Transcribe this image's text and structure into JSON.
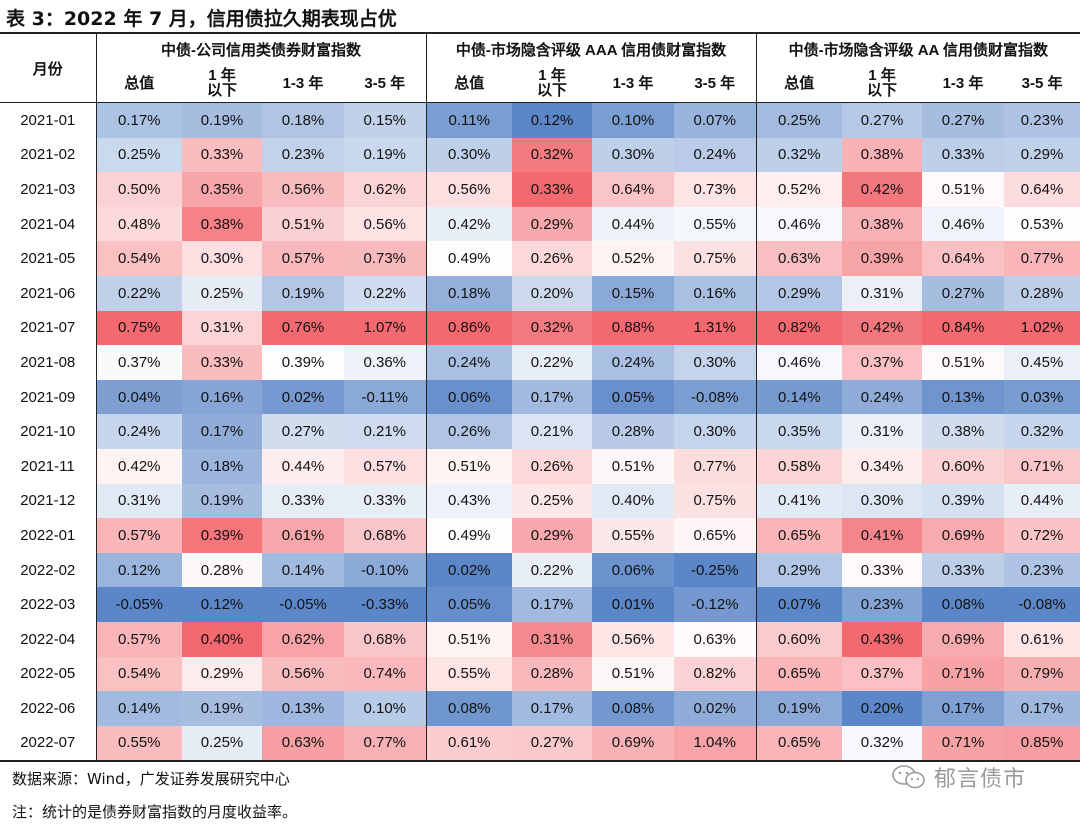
{
  "title": "表 3：2022 年 7 月，信用债拉久期表现占优",
  "source": "数据来源：Wind，广发证券发展研究中心",
  "note": "注：统计的是债券财富指数的月度收益率。",
  "watermark": "郁言债市",
  "colors": {
    "negative_max": "#5b86c7",
    "neutral": "#ffffff",
    "positive_max": "#f26a70",
    "rule": "#222222"
  },
  "chart_data": {
    "type": "heatmap",
    "title": "表 3：2022 年 7 月，信用债拉久期表现占优",
    "row_header": "月份",
    "groups": [
      {
        "name": "中债-公司信用类债券财富指数",
        "columns": [
          "总值",
          "1 年\n以下",
          "1-3 年",
          "3-5 年"
        ]
      },
      {
        "name": "中债-市场隐含评级 AAA 信用债财富指数",
        "columns": [
          "总值",
          "1 年\n以下",
          "1-3 年",
          "3-5 年"
        ]
      },
      {
        "name": "中债-市场隐含评级 AA 信用债财富指数",
        "columns": [
          "总值",
          "1 年\n以下",
          "1-3 年",
          "3-5 年"
        ]
      }
    ],
    "unit": "%",
    "rows": [
      {
        "month": "2021-01",
        "values": [
          0.17,
          0.19,
          0.18,
          0.15,
          0.11,
          0.12,
          0.1,
          0.07,
          0.25,
          0.27,
          0.27,
          0.23
        ]
      },
      {
        "month": "2021-02",
        "values": [
          0.25,
          0.33,
          0.23,
          0.19,
          0.3,
          0.32,
          0.3,
          0.24,
          0.32,
          0.38,
          0.33,
          0.29
        ]
      },
      {
        "month": "2021-03",
        "values": [
          0.5,
          0.35,
          0.56,
          0.62,
          0.56,
          0.33,
          0.64,
          0.73,
          0.52,
          0.42,
          0.51,
          0.64
        ]
      },
      {
        "month": "2021-04",
        "values": [
          0.48,
          0.38,
          0.51,
          0.56,
          0.42,
          0.29,
          0.44,
          0.55,
          0.46,
          0.38,
          0.46,
          0.53
        ]
      },
      {
        "month": "2021-05",
        "values": [
          0.54,
          0.3,
          0.57,
          0.73,
          0.49,
          0.26,
          0.52,
          0.75,
          0.63,
          0.39,
          0.64,
          0.77
        ]
      },
      {
        "month": "2021-06",
        "values": [
          0.22,
          0.25,
          0.19,
          0.22,
          0.18,
          0.2,
          0.15,
          0.16,
          0.29,
          0.31,
          0.27,
          0.28
        ]
      },
      {
        "month": "2021-07",
        "values": [
          0.75,
          0.31,
          0.76,
          1.07,
          0.86,
          0.32,
          0.88,
          1.31,
          0.82,
          0.42,
          0.84,
          1.02
        ]
      },
      {
        "month": "2021-08",
        "values": [
          0.37,
          0.33,
          0.39,
          0.36,
          0.24,
          0.22,
          0.24,
          0.3,
          0.46,
          0.37,
          0.51,
          0.45
        ]
      },
      {
        "month": "2021-09",
        "values": [
          0.04,
          0.16,
          0.02,
          -0.11,
          0.06,
          0.17,
          0.05,
          -0.08,
          0.14,
          0.24,
          0.13,
          0.03
        ]
      },
      {
        "month": "2021-10",
        "values": [
          0.24,
          0.17,
          0.27,
          0.21,
          0.26,
          0.21,
          0.28,
          0.3,
          0.35,
          0.31,
          0.38,
          0.32
        ]
      },
      {
        "month": "2021-11",
        "values": [
          0.42,
          0.18,
          0.44,
          0.57,
          0.51,
          0.26,
          0.51,
          0.77,
          0.58,
          0.34,
          0.6,
          0.71
        ]
      },
      {
        "month": "2021-12",
        "values": [
          0.31,
          0.19,
          0.33,
          0.33,
          0.43,
          0.25,
          0.4,
          0.75,
          0.41,
          0.3,
          0.39,
          0.44
        ]
      },
      {
        "month": "2022-01",
        "values": [
          0.57,
          0.39,
          0.61,
          0.68,
          0.49,
          0.29,
          0.55,
          0.65,
          0.65,
          0.41,
          0.69,
          0.72
        ]
      },
      {
        "month": "2022-02",
        "values": [
          0.12,
          0.28,
          0.14,
          -0.1,
          0.02,
          0.22,
          0.06,
          -0.25,
          0.29,
          0.33,
          0.33,
          0.23
        ]
      },
      {
        "month": "2022-03",
        "values": [
          -0.05,
          0.12,
          -0.05,
          -0.33,
          0.05,
          0.17,
          0.01,
          -0.12,
          0.07,
          0.23,
          0.08,
          -0.08
        ]
      },
      {
        "month": "2022-04",
        "values": [
          0.57,
          0.4,
          0.62,
          0.68,
          0.51,
          0.31,
          0.56,
          0.63,
          0.6,
          0.43,
          0.69,
          0.61
        ]
      },
      {
        "month": "2022-05",
        "values": [
          0.54,
          0.29,
          0.56,
          0.74,
          0.55,
          0.28,
          0.51,
          0.82,
          0.65,
          0.37,
          0.71,
          0.79
        ]
      },
      {
        "month": "2022-06",
        "values": [
          0.14,
          0.19,
          0.13,
          0.1,
          0.08,
          0.17,
          0.08,
          0.02,
          0.19,
          0.2,
          0.17,
          0.17
        ]
      },
      {
        "month": "2022-07",
        "values": [
          0.55,
          0.25,
          0.63,
          0.77,
          0.61,
          0.27,
          0.69,
          1.04,
          0.65,
          0.32,
          0.71,
          0.85
        ]
      }
    ]
  }
}
